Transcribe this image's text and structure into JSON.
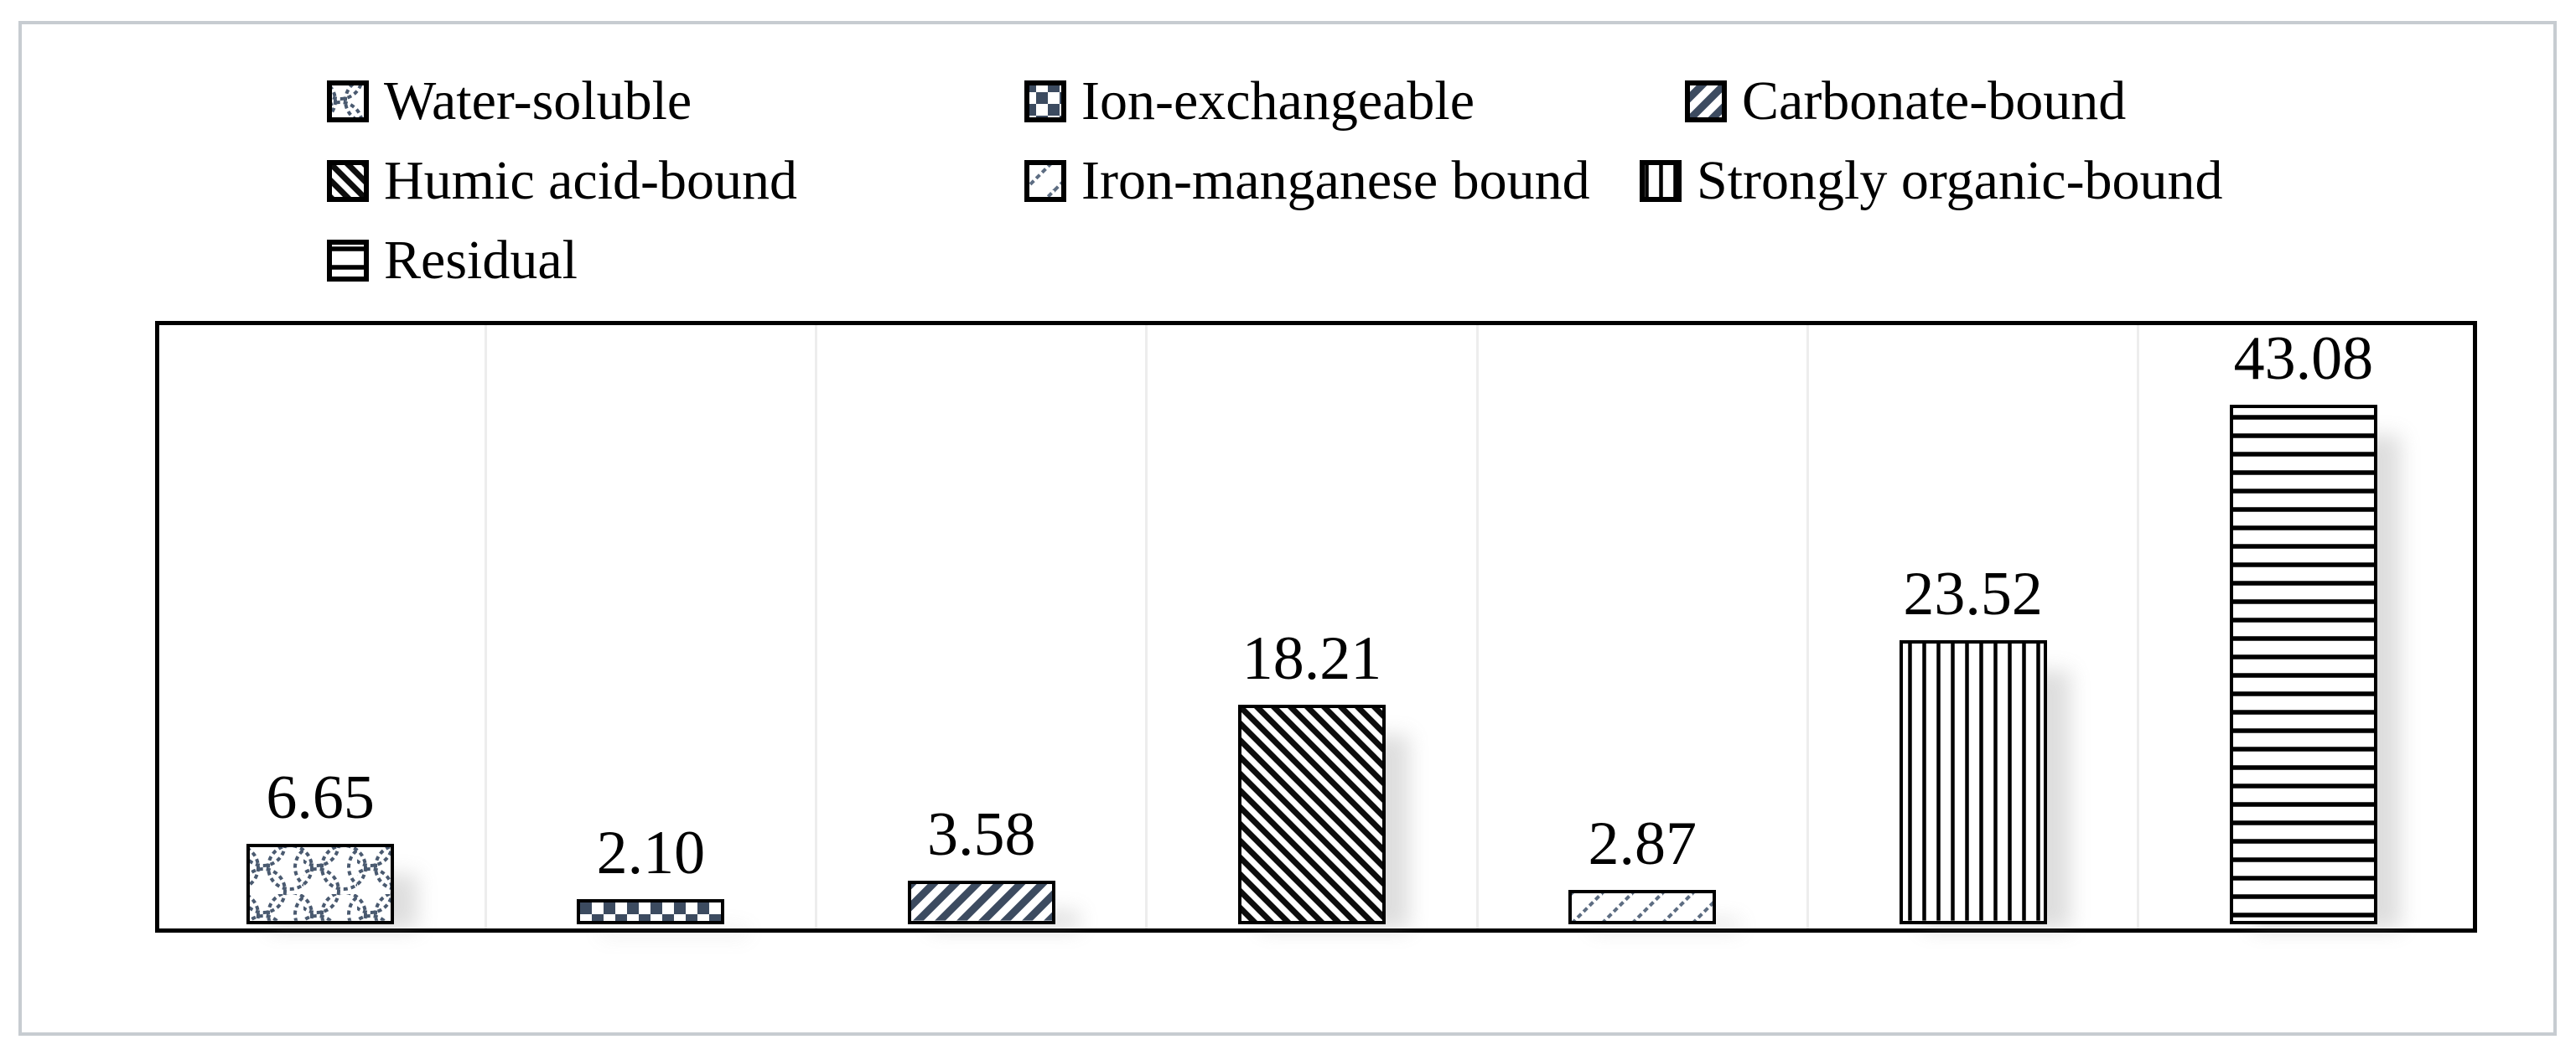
{
  "chart_data": {
    "type": "bar",
    "title": "",
    "xlabel": "",
    "ylabel": "",
    "categories": [
      "Water-soluble",
      "Ion-exchangeable",
      "Carbonate-bound",
      "Humic acid-bound",
      "Iron-manganese bound",
      "Strongly organic-bound",
      "Residual"
    ],
    "values": [
      6.65,
      2.1,
      3.58,
      18.21,
      2.87,
      23.52,
      43.08
    ],
    "value_labels": [
      "6.65",
      "2.10",
      "3.58",
      "18.21",
      "2.87",
      "23.52",
      "43.08"
    ],
    "patterns": [
      "fish-scale",
      "checkerboard",
      "diagonal-forward",
      "diagonal-back-dense",
      "diagonal-forward-thin",
      "vertical-lines",
      "horizontal-lines"
    ],
    "ylim": [
      0,
      50
    ],
    "grid": "faint vertical slot separators, no axis ticks, no axis labels",
    "legend_position": "top",
    "legend_rows": [
      [
        0,
        1,
        2
      ],
      [
        3,
        4,
        5
      ],
      [
        6
      ]
    ],
    "bar_labels_shown": true,
    "bar_shadow": true
  },
  "legend": {
    "items": [
      {
        "label": "Water-soluble",
        "pattern": "fish-scale"
      },
      {
        "label": "Ion-exchangeable",
        "pattern": "checkerboard"
      },
      {
        "label": "Carbonate-bound",
        "pattern": "diagonal-forward"
      },
      {
        "label": "Humic acid-bound",
        "pattern": "diagonal-back-dense"
      },
      {
        "label": "Iron-manganese bound",
        "pattern": "diagonal-forward-thin"
      },
      {
        "label": "Strongly organic-bound",
        "pattern": "vertical-lines"
      },
      {
        "label": "Residual",
        "pattern": "horizontal-lines"
      }
    ]
  },
  "colors": {
    "pattern_dark": "#3c4b60",
    "pattern_black": "#0d0d0d",
    "pattern_light": "#5d6d82",
    "bar_border": "#000000",
    "frame_border": "#c7ccd1",
    "gridline": "#ededed",
    "shadow": "#8a8a8a",
    "text": "#000000",
    "background": "#ffffff"
  }
}
